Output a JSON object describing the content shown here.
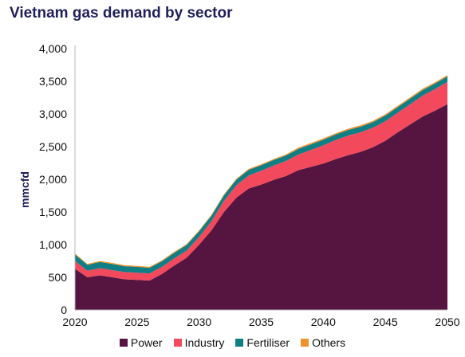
{
  "chart_data": {
    "type": "area",
    "title": "Vietnam gas demand by sector",
    "xlabel": "",
    "ylabel": "mmcfd",
    "ylim": [
      0,
      4000
    ],
    "xlim": [
      2020,
      2050
    ],
    "x_ticks": [
      "2020",
      "2025",
      "2030",
      "2035",
      "2040",
      "2045",
      "2050"
    ],
    "y_ticks": [
      "0",
      "500",
      "1,000",
      "1,500",
      "2,000",
      "2,500",
      "3,000",
      "3,500",
      "4,000"
    ],
    "grid": false,
    "stacked": true,
    "legend_position": "bottom",
    "x": [
      2020,
      2021,
      2022,
      2023,
      2024,
      2025,
      2026,
      2027,
      2028,
      2029,
      2030,
      2031,
      2032,
      2033,
      2034,
      2035,
      2036,
      2037,
      2038,
      2039,
      2040,
      2041,
      2042,
      2043,
      2044,
      2045,
      2046,
      2047,
      2048,
      2049,
      2050
    ],
    "series": [
      {
        "name": "Power",
        "color": "#561540",
        "values": [
          630,
          500,
          530,
          500,
          470,
          460,
          450,
          550,
          680,
          800,
          1000,
          1220,
          1500,
          1720,
          1860,
          1920,
          1990,
          2050,
          2140,
          2190,
          2240,
          2310,
          2370,
          2420,
          2490,
          2590,
          2720,
          2840,
          2960,
          3050,
          3150
        ]
      },
      {
        "name": "Industry",
        "color": "#f2495c",
        "values": [
          120,
          100,
          110,
          110,
          110,
          110,
          110,
          110,
          110,
          110,
          120,
          140,
          170,
          190,
          200,
          210,
          220,
          230,
          240,
          260,
          280,
          290,
          300,
          300,
          300,
          300,
          300,
          310,
          320,
          330,
          340
        ]
      },
      {
        "name": "Fertiliser",
        "color": "#0f7f86",
        "values": [
          100,
          90,
          95,
          95,
          90,
          90,
          85,
          85,
          85,
          85,
          85,
          85,
          85,
          85,
          85,
          85,
          85,
          85,
          85,
          85,
          85,
          85,
          85,
          85,
          85,
          85,
          85,
          85,
          85,
          85,
          85
        ]
      },
      {
        "name": "Others",
        "color": "#f0922a",
        "values": [
          15,
          15,
          15,
          15,
          15,
          15,
          15,
          15,
          15,
          15,
          15,
          15,
          15,
          15,
          15,
          15,
          15,
          15,
          20,
          20,
          20,
          20,
          20,
          20,
          20,
          20,
          20,
          20,
          20,
          20,
          20
        ]
      }
    ]
  }
}
